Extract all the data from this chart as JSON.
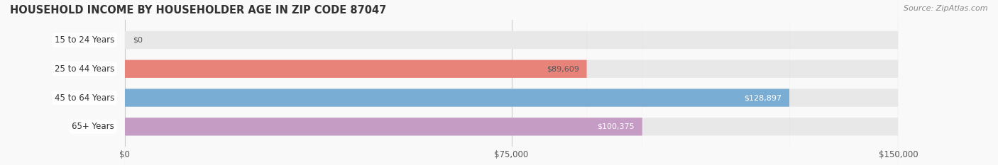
{
  "title": "HOUSEHOLD INCOME BY HOUSEHOLDER AGE IN ZIP CODE 87047",
  "source": "Source: ZipAtlas.com",
  "categories": [
    "15 to 24 Years",
    "25 to 44 Years",
    "45 to 64 Years",
    "65+ Years"
  ],
  "values": [
    0,
    89609,
    128897,
    100375
  ],
  "bar_colors": [
    "#f0c895",
    "#e8837a",
    "#7aadd4",
    "#c49cc4"
  ],
  "label_colors": [
    "#555555",
    "#555555",
    "#ffffff",
    "#ffffff"
  ],
  "bar_bg_color": "#eeeeee",
  "xlim": [
    0,
    150000
  ],
  "xticks": [
    0,
    75000,
    150000
  ],
  "xtick_labels": [
    "$0",
    "$75,000",
    "$150,000"
  ],
  "background_color": "#f9f9f9",
  "bar_height": 0.62,
  "figsize": [
    14.06,
    2.33
  ],
  "dpi": 100
}
